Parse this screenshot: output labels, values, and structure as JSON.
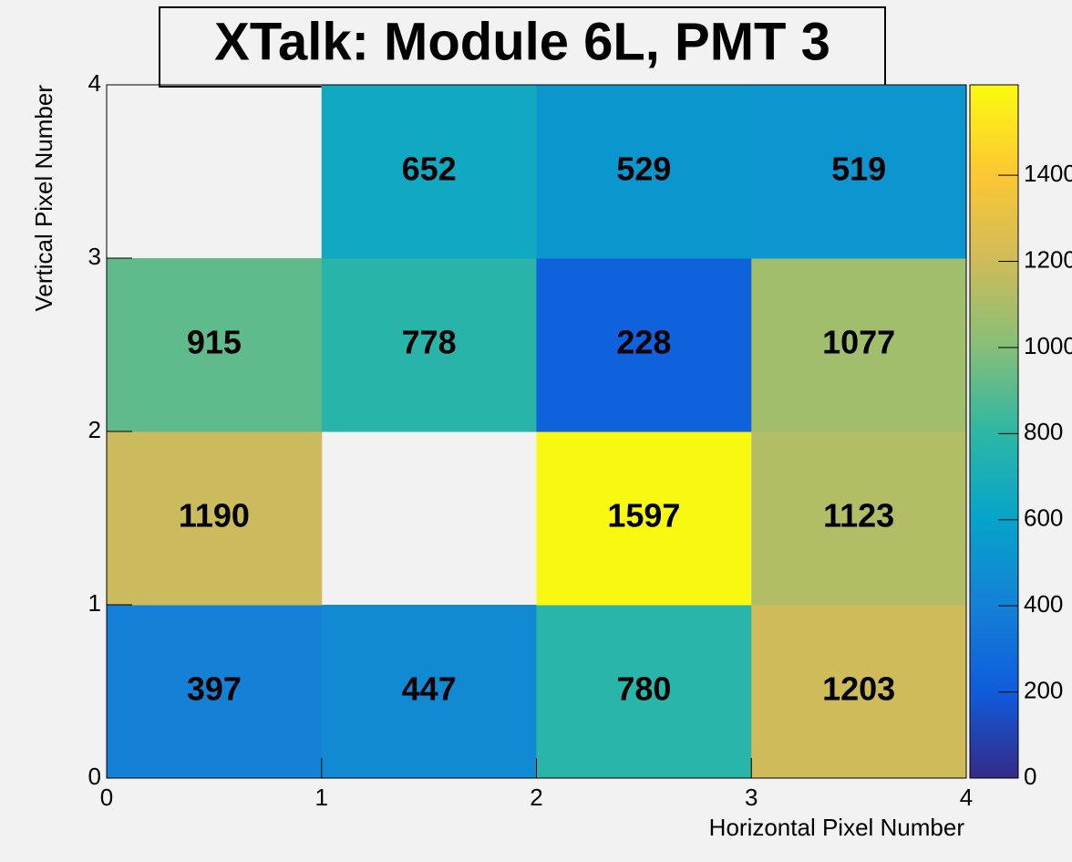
{
  "chart_data": {
    "type": "heatmap",
    "title": "XTalk: Module 6L, PMT 3",
    "x_label": "Horizontal Pixel Number",
    "y_label": "Vertical Pixel Number",
    "xlim": [
      0,
      4
    ],
    "xticks": [
      0,
      1,
      2,
      3,
      4
    ],
    "ylim": [
      0,
      4
    ],
    "yticks": [
      0,
      1,
      2,
      3,
      4
    ],
    "values": [
      [
        397,
        447,
        780,
        1203
      ],
      [
        1190,
        null,
        1597,
        1123
      ],
      [
        915,
        778,
        228,
        1077
      ],
      [
        null,
        652,
        529,
        519
      ]
    ],
    "zlim": [
      0,
      1610
    ],
    "zticks": [
      0,
      200,
      400,
      600,
      800,
      1000,
      1200,
      1400
    ],
    "colorscale": [
      "#352a87",
      "#0f5cdd",
      "#1481d6",
      "#06a4ca",
      "#2eb7a4",
      "#87bf77",
      "#d1bb59",
      "#fec832",
      "#f9fb0e"
    ]
  }
}
